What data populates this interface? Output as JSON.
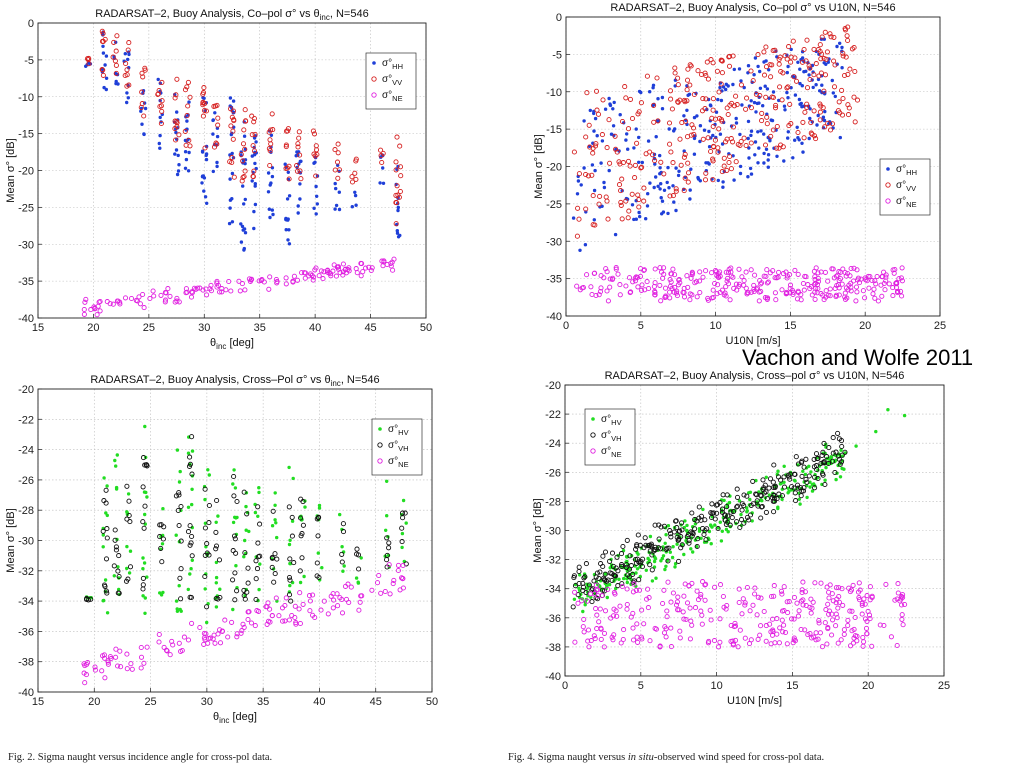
{
  "credit": "Vachon and Wolfe 2011",
  "captions": [
    {
      "prefix": "Fig. 2.    Sigma naught versus incidence angle for cross-pol data.",
      "italic": "",
      "suffix": ""
    },
    {
      "prefix": "Fig. 4.    Sigma naught versus ",
      "italic": "in situ",
      "suffix": "-observed wind speed for cross-pol data."
    }
  ],
  "colors": {
    "HH": "#1f3fd8",
    "VV": "#d62020",
    "NE": "#e020e0",
    "HV": "#22dd22",
    "VH": "#111111"
  },
  "chart_data": [
    {
      "type": "scatter",
      "title": "RADARSAT–2, Buoy Analysis, Co–pol σ° vs θinc, N=546",
      "xlabel": "θinc [deg]",
      "ylabel": "Mean σ° [dB]",
      "xlim": [
        15,
        50
      ],
      "ylim": [
        -40,
        0
      ],
      "xticks": [
        "15",
        "20",
        "25",
        "30",
        "35",
        "40",
        "45",
        "50"
      ],
      "yticks": [
        "0",
        "-5",
        "-10",
        "-15",
        "-20",
        "-25",
        "-30",
        "-35",
        "-40"
      ],
      "grid": true,
      "legend": "right",
      "series": [
        {
          "name": "σ°HH",
          "marker": "dot",
          "color": "#1f3fd8",
          "clusters": [
            [
              19.5,
              -5,
              -6
            ],
            [
              21,
              -1,
              -11
            ],
            [
              22,
              -2,
              -9
            ],
            [
              23,
              -3,
              -12
            ],
            [
              24.5,
              -8,
              -16
            ],
            [
              26,
              -7,
              -17
            ],
            [
              27.5,
              -8,
              -21
            ],
            [
              28.5,
              -10,
              -23
            ],
            [
              30,
              -9,
              -25
            ],
            [
              31,
              -12,
              -22
            ],
            [
              32.5,
              -10,
              -28
            ],
            [
              33.5,
              -13,
              -31
            ],
            [
              34.5,
              -13,
              -28
            ],
            [
              36,
              -14,
              -27
            ],
            [
              37.5,
              -16,
              -30
            ],
            [
              38.5,
              -16,
              -29
            ],
            [
              40,
              -18,
              -26
            ],
            [
              42,
              -19,
              -26
            ],
            [
              43.5,
              -22,
              -25
            ],
            [
              46,
              -17,
              -22
            ],
            [
              47.5,
              -19,
              -31
            ]
          ]
        },
        {
          "name": "σ°VV",
          "marker": "circle",
          "color": "#d62020",
          "clusters": [
            [
              19.5,
              -4.5,
              -6
            ],
            [
              21,
              -0.5,
              -8
            ],
            [
              22,
              -1,
              -7
            ],
            [
              23,
              -2,
              -9
            ],
            [
              24.5,
              -6,
              -13
            ],
            [
              26,
              -6,
              -14
            ],
            [
              27.5,
              -7,
              -16
            ],
            [
              28.5,
              -8,
              -17
            ],
            [
              30,
              -8,
              -18
            ],
            [
              31,
              -10,
              -17
            ],
            [
              32.5,
              -10,
              -21
            ],
            [
              33.5,
              -11,
              -22
            ],
            [
              34.5,
              -12,
              -21
            ],
            [
              36,
              -12,
              -20
            ],
            [
              37.5,
              -14,
              -22
            ],
            [
              38.5,
              -14,
              -22
            ],
            [
              40,
              -14,
              -21
            ],
            [
              42,
              -16,
              -22
            ],
            [
              43.5,
              -18,
              -23
            ],
            [
              46,
              -15,
              -19
            ],
            [
              47.5,
              -15,
              -28
            ]
          ]
        },
        {
          "name": "σ°NE",
          "marker": "circle",
          "color": "#e020e0",
          "trend": {
            "x0": 19,
            "y0": -38.6,
            "x1": 47.5,
            "y1": -32.6,
            "spread": 0.8,
            "n": 150
          }
        }
      ]
    },
    {
      "type": "scatter",
      "title": "RADARSAT–2, Buoy Analysis, Co–pol σ° vs U10N, N=546",
      "xlabel": "U10N [m/s]",
      "ylabel": "Mean σ° [dB]",
      "xlim": [
        0,
        25
      ],
      "ylim": [
        -40,
        0
      ],
      "xticks": [
        "0",
        "5",
        "10",
        "15",
        "20",
        "25"
      ],
      "yticks": [
        "0",
        "-5",
        "-10",
        "-15",
        "-20",
        "-25",
        "-30",
        "-35",
        "-40"
      ],
      "grid": true,
      "legend": "right",
      "series": [
        {
          "name": "σ°HH",
          "marker": "dot",
          "color": "#1f3fd8",
          "band": {
            "x": [
              0.5,
              18.5
            ],
            "lo": [
              -32,
              -16
            ],
            "hi": [
              -12,
              -2
            ],
            "n": 330
          }
        },
        {
          "name": "σ°VV",
          "marker": "circle",
          "color": "#d62020",
          "band": {
            "x": [
              0.5,
              19.5
            ],
            "lo": [
              -30,
              -14
            ],
            "hi": [
              -10,
              -1
            ],
            "n": 330
          }
        },
        {
          "name": "σ°NE",
          "marker": "circle",
          "color": "#e020e0",
          "band": {
            "x": [
              0.5,
              22.5
            ],
            "lo": [
              -38,
              -38
            ],
            "hi": [
              -33.5,
              -33.5
            ],
            "n": 330
          }
        }
      ]
    },
    {
      "type": "scatter",
      "title": "RADARSAT–2, Buoy Analysis, Cross–Pol σ° vs θinc, N=546",
      "xlabel": "θinc [deg]",
      "ylabel": "Mean σ° [dB]",
      "xlim": [
        15,
        50
      ],
      "ylim": [
        -40,
        -20
      ],
      "xticks": [
        "15",
        "20",
        "25",
        "30",
        "35",
        "40",
        "45",
        "50"
      ],
      "yticks": [
        "-20",
        "-22",
        "-24",
        "-26",
        "-28",
        "-30",
        "-32",
        "-34",
        "-36",
        "-38",
        "-40"
      ],
      "grid": true,
      "legend": "right",
      "series": [
        {
          "name": "σ°HV",
          "marker": "dot",
          "color": "#22dd22",
          "clusters": [
            [
              19.5,
              -33.6,
              -34
            ],
            [
              21,
              -24,
              -35
            ],
            [
              22,
              -24,
              -34
            ],
            [
              23,
              -26,
              -33
            ],
            [
              24.5,
              -22,
              -35
            ],
            [
              26,
              -27,
              -34
            ],
            [
              27.5,
              -24,
              -35
            ],
            [
              28.5,
              -22,
              -34
            ],
            [
              30,
              -25,
              -36
            ],
            [
              31,
              -27,
              -35
            ],
            [
              32.5,
              -25,
              -35
            ],
            [
              33.5,
              -26,
              -35
            ],
            [
              34.5,
              -26,
              -34
            ],
            [
              36,
              -26,
              -34
            ],
            [
              37.5,
              -25,
              -34
            ],
            [
              38.5,
              -26,
              -33
            ],
            [
              40,
              -27,
              -33
            ],
            [
              42,
              -28,
              -33
            ],
            [
              43.5,
              -30,
              -33
            ],
            [
              46,
              -26,
              -32
            ],
            [
              47.5,
              -27,
              -32
            ]
          ]
        },
        {
          "name": "σ°VH",
          "marker": "circle",
          "color": "#111111",
          "clusters": [
            [
              19.5,
              -33.8,
              -34
            ],
            [
              21,
              -24,
              -34
            ],
            [
              22,
              -25,
              -34
            ],
            [
              23,
              -26,
              -33
            ],
            [
              24.5,
              -23,
              -34
            ],
            [
              26,
              -28,
              -34
            ],
            [
              27.5,
              -25,
              -34
            ],
            [
              28.5,
              -22,
              -34
            ],
            [
              30,
              -26,
              -35
            ],
            [
              31,
              -27,
              -34
            ],
            [
              32.5,
              -25,
              -35
            ],
            [
              33.5,
              -26,
              -34
            ],
            [
              34.5,
              -26,
              -34
            ],
            [
              36,
              -26,
              -33
            ],
            [
              37.5,
              -26,
              -34
            ],
            [
              38.5,
              -26,
              -33
            ],
            [
              40,
              -27,
              -33
            ],
            [
              42,
              -28,
              -32
            ],
            [
              43.5,
              -30,
              -32
            ],
            [
              46,
              -27,
              -32
            ],
            [
              47.5,
              -27,
              -32
            ]
          ]
        },
        {
          "name": "σ°NE",
          "marker": "circle",
          "color": "#e020e0",
          "trend": {
            "x0": 19,
            "y0": -38.4,
            "x1": 47.5,
            "y1": -32.6,
            "spread": 0.9,
            "n": 150
          }
        }
      ]
    },
    {
      "type": "scatter",
      "title": "RADARSAT–2, Buoy Analysis, Cross–pol σ° vs U10N, N=546",
      "xlabel": "U10N [m/s]",
      "ylabel": "Mean σ° [dB]",
      "xlim": [
        0,
        25
      ],
      "ylim": [
        -40,
        -20
      ],
      "xticks": [
        "0",
        "5",
        "10",
        "15",
        "20",
        "25"
      ],
      "yticks": [
        "-20",
        "-22",
        "-24",
        "-26",
        "-28",
        "-30",
        "-32",
        "-34",
        "-36",
        "-38",
        "-40"
      ],
      "grid": true,
      "legend": "top-left",
      "series": [
        {
          "name": "σ°HV",
          "marker": "dot",
          "color": "#22dd22",
          "trend": {
            "x0": 0.5,
            "y0": -34.5,
            "x1": 18.5,
            "y1": -25,
            "spread": 1.1,
            "n": 300
          }
        },
        {
          "name": "σ°VH",
          "marker": "circle",
          "color": "#111111",
          "trend": {
            "x0": 0.5,
            "y0": -34.2,
            "x1": 18.5,
            "y1": -24.6,
            "spread": 1.1,
            "n": 300
          }
        },
        {
          "name": "σ°NE",
          "marker": "circle",
          "color": "#e020e0",
          "band": {
            "x": [
              0.5,
              22.5
            ],
            "lo": [
              -38,
              -38
            ],
            "hi": [
              -33.5,
              -33.5
            ],
            "n": 330
          }
        }
      ],
      "extra_points": [
        {
          "series": 0,
          "points": [
            [
              21.3,
              -21.7
            ],
            [
              22.4,
              -22.1
            ],
            [
              20.5,
              -23.2
            ],
            [
              19.2,
              -24.2
            ]
          ]
        },
        {
          "series": 1,
          "points": [
            [
              18.1,
              -23.7
            ],
            [
              17.4,
              -24.3
            ]
          ]
        }
      ]
    }
  ]
}
